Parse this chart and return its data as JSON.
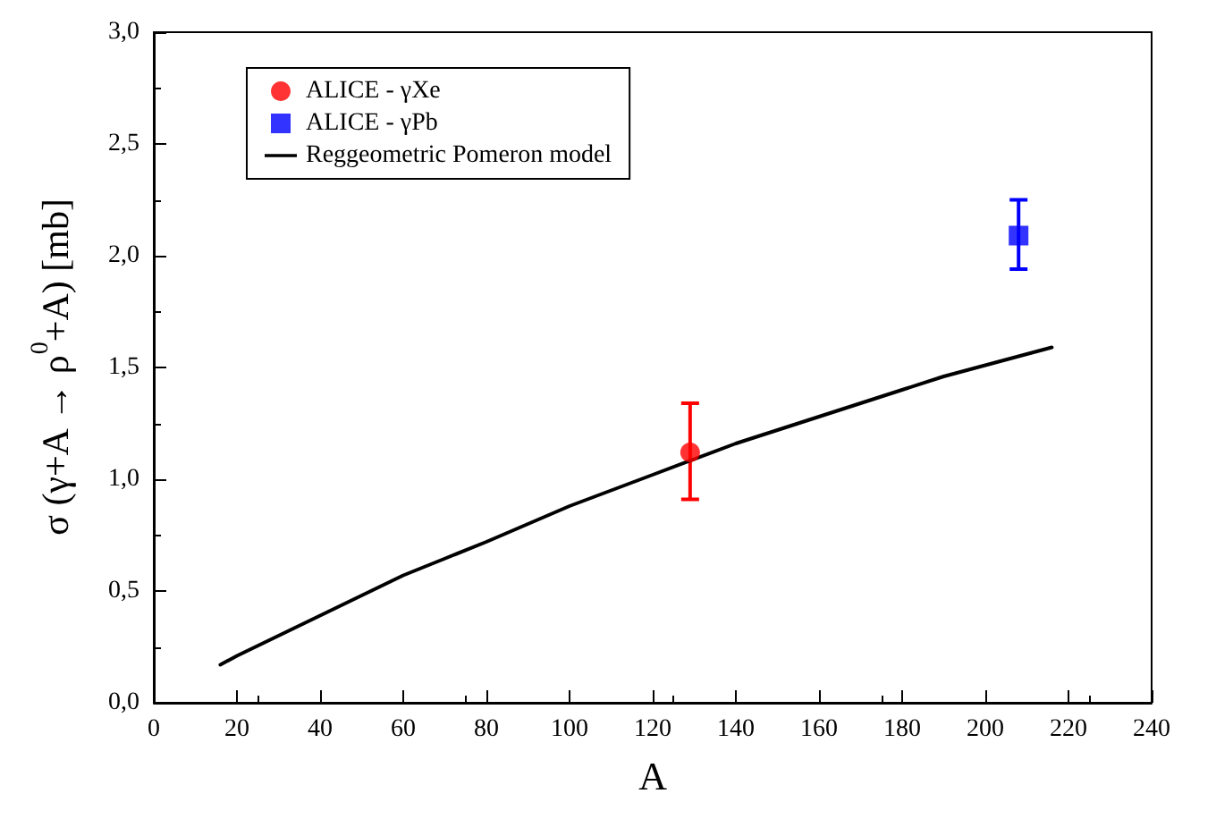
{
  "chart_data": {
    "type": "scatter",
    "xlabel": "A",
    "ylabel": "σ (γ+A → ρ$^{0}$+A) [mb]",
    "xlim": [
      0,
      240
    ],
    "xticks": [
      0,
      20,
      40,
      60,
      80,
      100,
      120,
      140,
      160,
      180,
      200,
      220,
      240
    ],
    "ylim": [
      0,
      3
    ],
    "yticks": [
      {
        "value": 0,
        "label": "0,0"
      },
      {
        "value": 0.5,
        "label": "0,5"
      },
      {
        "value": 1,
        "label": "1,0"
      },
      {
        "value": 1.5,
        "label": "1,5"
      },
      {
        "value": 2,
        "label": "2,0"
      },
      {
        "value": 2.5,
        "label": "2,5"
      },
      {
        "value": 3,
        "label": "3,0"
      }
    ],
    "grid": false,
    "legend": "top left",
    "series": [
      {
        "name": "ALICE - γXe",
        "marker": "circle",
        "color": "#ff0000",
        "x": [
          129
        ],
        "values": [
          1.12
        ],
        "errors": [
          [
            0.91,
            1.34
          ]
        ]
      },
      {
        "name": "ALICE - γPb",
        "marker": "square",
        "color": "#0000ff",
        "x": [
          208
        ],
        "values": [
          2.09
        ],
        "errors": [
          [
            1.94,
            2.25
          ]
        ]
      },
      {
        "name": "Reggeometric Pomeron model",
        "type": "line",
        "marker": "none",
        "line_style": "solid",
        "color": "#000000",
        "x": [
          16,
          20,
          30,
          40,
          50,
          60,
          70,
          80,
          90,
          100,
          110,
          120,
          130,
          140,
          150,
          160,
          170,
          180,
          190,
          200,
          210,
          216
        ],
        "values": [
          0.17,
          0.21,
          0.3,
          0.39,
          0.48,
          0.57,
          0.645,
          0.72,
          0.8,
          0.88,
          0.95,
          1.02,
          1.09,
          1.16,
          1.22,
          1.28,
          1.34,
          1.4,
          1.46,
          1.51,
          1.56,
          1.59
        ]
      }
    ]
  }
}
